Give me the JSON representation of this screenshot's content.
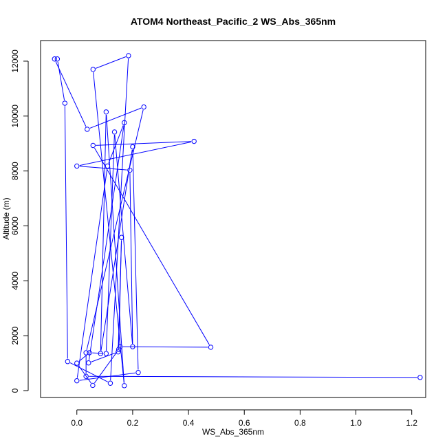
{
  "chart_data": {
    "type": "line",
    "title": "ATOM4 Northeast_Pacific_2 WS_Abs_365nm",
    "xlabel": "WS_Abs_365nm",
    "ylabel": "Altitude (m)",
    "xlim": [
      -0.13,
      1.25
    ],
    "ylim": [
      -250,
      12750
    ],
    "x_ticks": [
      0.0,
      0.2,
      0.4,
      0.6,
      0.8,
      1.0,
      1.2
    ],
    "x_tick_labels": [
      "0.0",
      "0.2",
      "0.4",
      "0.6",
      "0.8",
      "1.0",
      "1.2"
    ],
    "y_ticks": [
      0,
      2000,
      4000,
      6000,
      8000,
      10000,
      12000
    ],
    "y_tick_labels": [
      "0",
      "2000",
      "4000",
      "6000",
      "8000",
      "10000",
      "12000"
    ],
    "series_color": "#0000ff",
    "marker": "open-circle",
    "grid": false,
    "series": [
      {
        "x": [
          1.23,
          0.033,
          0.033,
          0.24,
          0.037,
          -0.08,
          -0.07,
          -0.043,
          -0.033,
          0.12,
          0.185,
          0.058,
          0.17,
          0.105,
          0.085,
          0.2,
          0.22,
          0.0,
          0.11,
          0.17,
          0.042,
          0.148,
          0.16,
          0.15,
          0.057,
          0.0,
          0.045,
          0.105,
          0.135,
          0.2,
          0.19,
          0.0,
          0.42,
          0.058,
          0.48,
          0.155
        ],
        "y": [
          480,
          520,
          1380,
          10330,
          9520,
          12080,
          12080,
          10470,
          1060,
          270,
          12200,
          11700,
          180,
          10150,
          1350,
          8880,
          660,
          360,
          8180,
          9760,
          1010,
          1410,
          5580,
          1500,
          190,
          1000,
          1380,
          1350,
          9420,
          1600,
          8030,
          8180,
          9080,
          8930,
          1580,
          1600
        ]
      }
    ]
  }
}
